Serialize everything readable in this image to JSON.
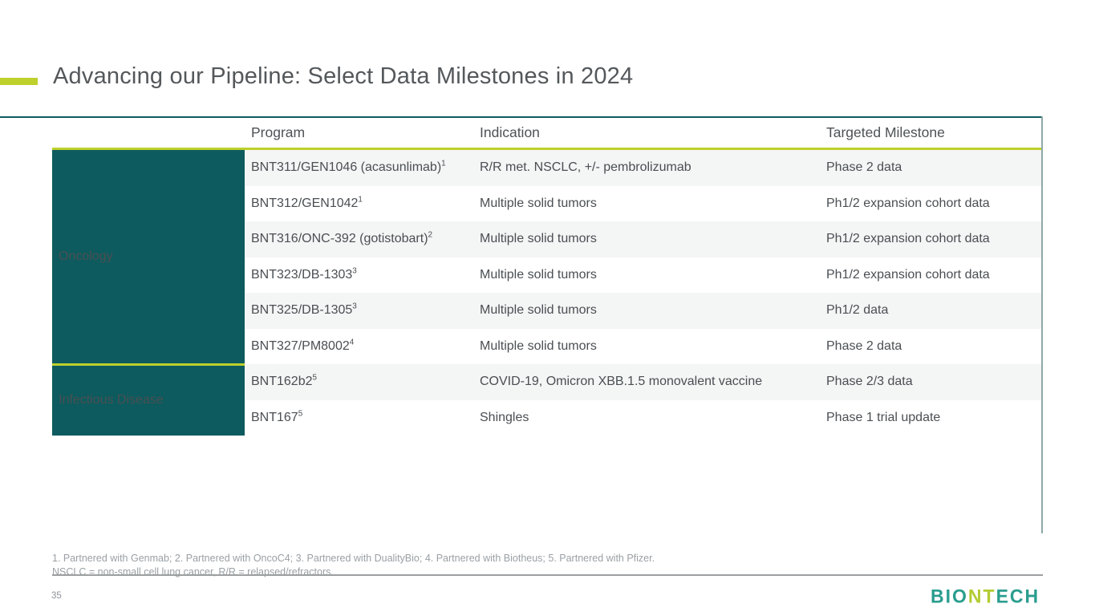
{
  "slide": {
    "title": "Advancing our Pipeline: Select Data Milestones in 2024",
    "page_number": "35",
    "footnote_line1": "1. Partnered with Genmab; 2. Partnered with OncoC4; 3. Partnered with DualityBio; 4. Partnered with Biotheus; 5. Partnered with Pfizer.",
    "footnote_line2": "NSCLC = non-small cell lung cancer, R/R = relapsed/refractors.",
    "logo": {
      "part1": "BIO",
      "part2": "NT",
      "part3": "ECH"
    }
  },
  "colors": {
    "accent_lime": "#bdd02c",
    "teal_dark": "#0d5b5e",
    "row_alt": "#f4f5f5",
    "border_right": "#8fa8a8",
    "title_text": "#54585b",
    "body_text": "#4a4f53",
    "footnote_text": "#9aa0a5",
    "logo_teal": "#2a9d8f",
    "logo_lime": "#b2cc32"
  },
  "table": {
    "headers": {
      "program": "Program",
      "indication": "Indication",
      "milestone": "Targeted Milestone"
    },
    "groups": [
      {
        "label": "Oncology",
        "rows": [
          {
            "program": "BNT311/GEN1046 (acasunlimab)",
            "sup": "1",
            "indication": "R/R met. NSCLC, +/- pembrolizumab",
            "milestone": "Phase 2 data"
          },
          {
            "program": "BNT312/GEN1042",
            "sup": "1",
            "indication": "Multiple solid tumors",
            "milestone": "Ph1/2 expansion cohort data"
          },
          {
            "program": "BNT316/ONC-392 (gotistobart)",
            "sup": "2",
            "indication": "Multiple solid tumors",
            "milestone": "Ph1/2 expansion cohort data"
          },
          {
            "program": "BNT323/DB-1303",
            "sup": "3",
            "indication": "Multiple solid tumors",
            "milestone": "Ph1/2 expansion cohort data"
          },
          {
            "program": "BNT325/DB-1305",
            "sup": "3",
            "indication": "Multiple solid tumors",
            "milestone": "Ph1/2 data"
          },
          {
            "program": "BNT327/PM8002",
            "sup": "4",
            "indication": "Multiple solid tumors",
            "milestone": "Phase 2 data"
          }
        ]
      },
      {
        "label": "Infectious Disease",
        "rows": [
          {
            "program": "BNT162b2",
            "sup": "5",
            "indication": "COVID-19, Omicron XBB.1.5 monovalent vaccine",
            "milestone": "Phase 2/3 data"
          },
          {
            "program": "BNT167",
            "sup": "5",
            "indication": "Shingles",
            "milestone": "Phase 1 trial update"
          }
        ]
      }
    ]
  }
}
